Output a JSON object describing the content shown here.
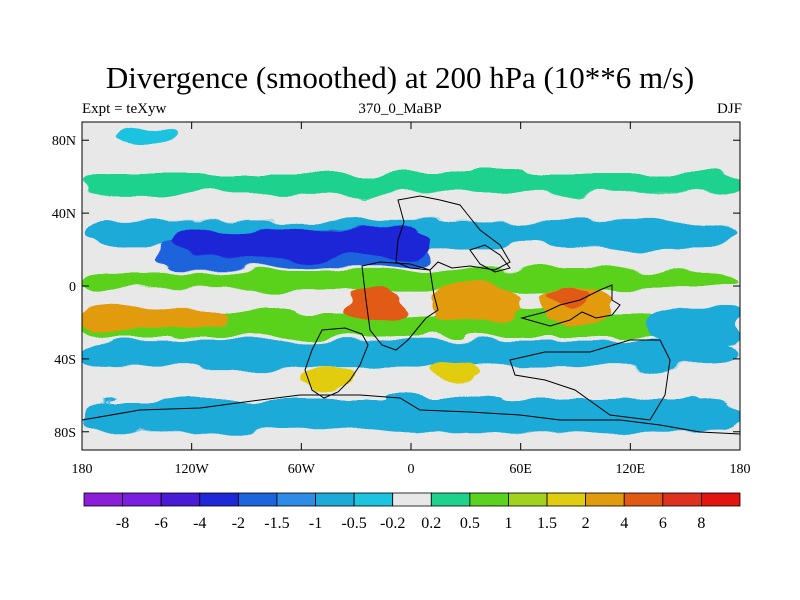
{
  "title": "Divergence (smoothed) at 200 hPa (10**6 m/s)",
  "subtitle_left": "Expt = teXyw",
  "subtitle_center": "370_0_MaBP",
  "subtitle_right": "DJF",
  "chart_data": {
    "type": "heatmap",
    "title": "Divergence (smoothed) at 200 hPa (10**6 m/s)",
    "xlabel": "",
    "ylabel": "",
    "xlim": [
      -180,
      180
    ],
    "ylim": [
      -90,
      90
    ],
    "x_ticks": [
      {
        "value": -180,
        "label": "180"
      },
      {
        "value": -120,
        "label": "120W"
      },
      {
        "value": -60,
        "label": "60W"
      },
      {
        "value": 0,
        "label": "0"
      },
      {
        "value": 60,
        "label": "60E"
      },
      {
        "value": 120,
        "label": "120E"
      },
      {
        "value": 180,
        "label": "180"
      }
    ],
    "y_ticks": [
      {
        "value": 80,
        "label": "80N"
      },
      {
        "value": 40,
        "label": "40N"
      },
      {
        "value": 0,
        "label": "0"
      },
      {
        "value": -40,
        "label": "40S"
      },
      {
        "value": -80,
        "label": "80S"
      }
    ],
    "colorbar": {
      "boundaries": [
        -8,
        -6,
        -4,
        -2,
        -1.5,
        -1,
        -0.5,
        -0.2,
        0.2,
        0.5,
        1,
        1.5,
        2,
        4,
        6,
        8
      ],
      "labels": [
        "-8",
        "-6",
        "-4",
        "-2",
        "-1.5",
        "-1",
        "-0.5",
        "-0.2",
        "0.2",
        "0.5",
        "1",
        "1.5",
        "2",
        "4",
        "6",
        "8"
      ],
      "colors": [
        "#8c1ed9",
        "#7a1ee0",
        "#4a1bd6",
        "#1e28d6",
        "#1e64dc",
        "#2e8be6",
        "#1eaad8",
        "#1ec3e0",
        "#e8e8e8",
        "#1ed28c",
        "#5ad21e",
        "#a0d21e",
        "#e1cd0f",
        "#e19b0f",
        "#e15a14",
        "#dc321e",
        "#e1140f"
      ]
    },
    "regions": [
      {
        "level": "0.2 to 0.5",
        "lon": [
          -180,
          180
        ],
        "lat": [
          50,
          62
        ]
      },
      {
        "level": "-0.2 to -0.5",
        "lon": [
          -160,
          -130
        ],
        "lat": [
          78,
          86
        ]
      },
      {
        "level": "-1 to -0.5",
        "lon": [
          -180,
          180
        ],
        "lat": [
          22,
          36
        ]
      },
      {
        "level": "-2 to -1.5",
        "lon": [
          -140,
          10
        ],
        "lat": [
          10,
          26
        ]
      },
      {
        "level": "-4 to -2",
        "lon": [
          -130,
          10
        ],
        "lat": [
          15,
          32
        ]
      },
      {
        "level": "0.5 to 1",
        "lon": [
          -180,
          180
        ],
        "lat": [
          -2,
          8
        ]
      },
      {
        "level": "0.5 to 1",
        "lon": [
          -180,
          180
        ],
        "lat": [
          -28,
          -14
        ]
      },
      {
        "level": "2 to 4",
        "lon": [
          -180,
          -100
        ],
        "lat": [
          -24,
          -12
        ]
      },
      {
        "level": "2 to 4",
        "lon": [
          10,
          60
        ],
        "lat": [
          -20,
          0
        ]
      },
      {
        "level": "2 to 4",
        "lon": [
          70,
          110
        ],
        "lat": [
          -20,
          0
        ]
      },
      {
        "level": "4 to 6",
        "lon": [
          -35,
          -5
        ],
        "lat": [
          -20,
          0
        ]
      },
      {
        "level": "4 to 6",
        "lon": [
          75,
          100
        ],
        "lat": [
          -10,
          0
        ]
      },
      {
        "level": "-1 to -0.5",
        "lon": [
          -180,
          180
        ],
        "lat": [
          -44,
          -30
        ]
      },
      {
        "level": "1.5 to 2",
        "lon": [
          -60,
          -30
        ],
        "lat": [
          -56,
          -44
        ]
      },
      {
        "level": "1.5 to 2",
        "lon": [
          10,
          40
        ],
        "lat": [
          -52,
          -42
        ]
      },
      {
        "level": "-1 to -0.5",
        "lon": [
          -180,
          180
        ],
        "lat": [
          -80,
          -62
        ]
      },
      {
        "level": "-1 to -0.5",
        "lon": [
          130,
          180
        ],
        "lat": [
          -32,
          -10
        ]
      }
    ]
  }
}
